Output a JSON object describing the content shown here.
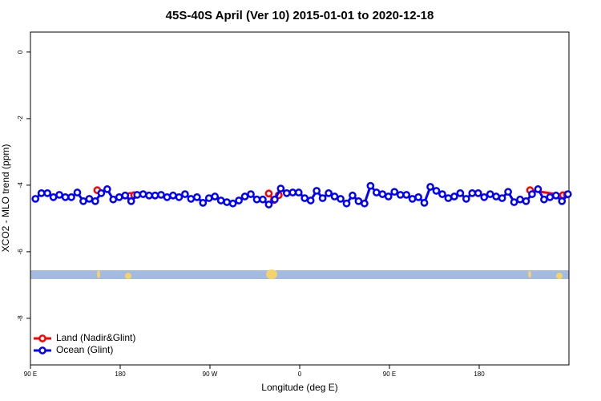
{
  "chart_data": {
    "type": "line",
    "title": "45S-40S April (Ver 10)   2015-01-01 to 2020-12-18",
    "xlabel": "Longitude (deg E)",
    "ylabel": "XCO2 - MLO trend (ppm)",
    "xlim": [
      90,
      630
    ],
    "xticks": [
      {
        "value": 90,
        "label": "90 E"
      },
      {
        "value": 180,
        "label": "180"
      },
      {
        "value": 270,
        "label": "90 W"
      },
      {
        "value": 360,
        "label": "0"
      },
      {
        "value": 450,
        "label": "90 E"
      },
      {
        "value": 540,
        "label": "180"
      }
    ],
    "ylim": [
      -9.4,
      0.6
    ],
    "yticks": [
      0,
      -2,
      -4,
      -6,
      -8
    ],
    "grid": false,
    "legend": "bottom-left",
    "series": [
      {
        "name": "Land (Nadir&Glint)",
        "color": "#ff0000",
        "x": [
          157,
          175,
          190,
          194,
          260,
          329,
          334,
          339,
          460,
          591,
          624,
          628
        ],
        "values": [
          -4.15,
          null,
          -4.32,
          -4.3,
          null,
          -4.25,
          -4.45,
          -4.3,
          null,
          -4.15,
          -4.3,
          -4.28
        ]
      },
      {
        "name": "Ocean (Glint)",
        "color": "#0000ff",
        "x": [
          95,
          101,
          107,
          113,
          119,
          125,
          131,
          137,
          143,
          149,
          155,
          161,
          167,
          173,
          179,
          185,
          191,
          197,
          203,
          209,
          215,
          221,
          227,
          233,
          239,
          245,
          251,
          257,
          263,
          269,
          275,
          281,
          287,
          293,
          299,
          305,
          311,
          317,
          323,
          329,
          335,
          341,
          347,
          353,
          359,
          365,
          371,
          377,
          383,
          389,
          395,
          401,
          407,
          413,
          419,
          425,
          431,
          437,
          443,
          449,
          455,
          461,
          467,
          473,
          479,
          485,
          491,
          497,
          503,
          509,
          515,
          521,
          527,
          533,
          539,
          545,
          551,
          557,
          563,
          569,
          575,
          581,
          587,
          593,
          599,
          605,
          611,
          617,
          623,
          629
        ],
        "values": [
          -4.41,
          -4.24,
          -4.24,
          -4.36,
          -4.29,
          -4.36,
          -4.36,
          -4.22,
          -4.48,
          -4.41,
          -4.48,
          -4.24,
          -4.12,
          -4.43,
          -4.36,
          -4.31,
          -4.48,
          -4.29,
          -4.27,
          -4.31,
          -4.31,
          -4.29,
          -4.36,
          -4.31,
          -4.36,
          -4.27,
          -4.41,
          -4.36,
          -4.53,
          -4.39,
          -4.34,
          -4.46,
          -4.51,
          -4.55,
          -4.46,
          -4.34,
          -4.27,
          -4.43,
          -4.43,
          -4.58,
          -4.43,
          -4.1,
          -4.24,
          -4.22,
          -4.22,
          -4.39,
          -4.46,
          -4.17,
          -4.39,
          -4.24,
          -4.34,
          -4.41,
          -4.55,
          -4.31,
          -4.48,
          -4.55,
          -4.02,
          -4.22,
          -4.27,
          -4.34,
          -4.2,
          -4.29,
          -4.29,
          -4.41,
          -4.36,
          -4.53,
          -4.05,
          -4.17,
          -4.27,
          -4.39,
          -4.34,
          -4.24,
          -4.41,
          -4.24,
          -4.24,
          -4.36,
          -4.27,
          -4.34,
          -4.39,
          -4.2,
          -4.51,
          -4.43,
          -4.48,
          -4.27,
          -4.12,
          -4.43,
          -4.36,
          -4.31,
          -4.48,
          -4.27
        ]
      }
    ]
  }
}
